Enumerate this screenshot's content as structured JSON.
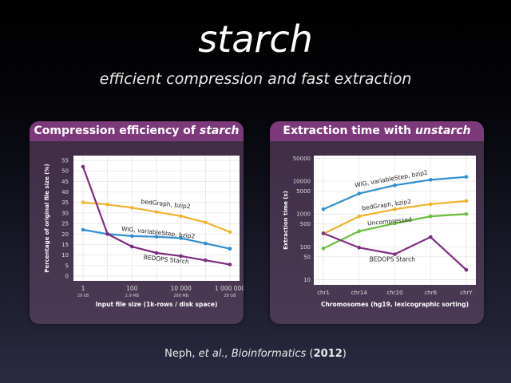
{
  "header": {
    "title": "starch",
    "subtitle": "efficient compression and fast extraction"
  },
  "panels": {
    "left_title_prefix": "Compression efficiency of ",
    "left_title_em": "starch",
    "right_title_prefix": "Extraction time with ",
    "right_title_em": "unstarch"
  },
  "citation": {
    "author": "Neph, ",
    "etal": "et al., ",
    "journal": "Bioinformatics",
    "open": " (",
    "year": "2012",
    "close": ")"
  },
  "colors": {
    "bedgraph": "#f0b32b",
    "wig": "#2f8fd0",
    "bedops": "#7b2d7d",
    "uncompressed": "#6bbd3c",
    "panel_header": "#7c3a7a"
  },
  "chart_data": [
    {
      "type": "line",
      "title": "Compression efficiency of starch",
      "xlabel": "Input file size (1k-rows / disk space)",
      "ylabel": "Percentage of original file size (%)",
      "x_scale": "log",
      "xlim": [
        1,
        1000000
      ],
      "ylim": [
        0,
        55
      ],
      "yticks": [
        0,
        5,
        10,
        15,
        20,
        25,
        30,
        35,
        40,
        45,
        50,
        55
      ],
      "xticks": [
        {
          "v": 1,
          "label": "1",
          "sub": "29 kB"
        },
        {
          "v": 100,
          "label": "100",
          "sub": "2.9 MB"
        },
        {
          "v": 10000,
          "label": "10 000",
          "sub": "288 MB"
        },
        {
          "v": 1000000,
          "label": "1 000 000",
          "sub": "28 GB"
        }
      ],
      "x": [
        1,
        10,
        100,
        1000,
        10000,
        100000,
        1000000
      ],
      "grid": true,
      "series": [
        {
          "name": "bedGraph, bzip2",
          "color": "#f0b32b",
          "values": [
            35,
            34,
            32.5,
            30.5,
            28.5,
            25.5,
            21
          ]
        },
        {
          "name": "WIG, variableStep, bzip2",
          "color": "#2f8fd0",
          "values": [
            22,
            20,
            19,
            18.7,
            18,
            15.5,
            13
          ]
        },
        {
          "name": "BEDOPS Starch",
          "color": "#7b2d7d",
          "values": [
            52,
            20,
            14,
            11,
            9.5,
            7.5,
            5.5
          ]
        }
      ]
    },
    {
      "type": "line",
      "title": "Extraction time with unstarch",
      "xlabel": "Chromosomes (hg19, lexicographic sorting)",
      "ylabel": "Extraction time (s)",
      "y_scale": "log",
      "ylim": [
        7,
        60000
      ],
      "yticks": [
        10,
        50,
        100,
        500,
        1000,
        5000,
        10000,
        50000
      ],
      "categories": [
        "chr1",
        "chr14",
        "chr20",
        "chr6",
        "chrY"
      ],
      "grid": true,
      "series": [
        {
          "name": "WIG, variableStep, bzip2",
          "color": "#2f8fd0",
          "values": [
            1400,
            4200,
            7500,
            11000,
            13500
          ]
        },
        {
          "name": "bedGraph, bzip2",
          "color": "#f0b32b",
          "values": [
            250,
            850,
            1400,
            2000,
            2500
          ]
        },
        {
          "name": "Uncompressed",
          "color": "#6bbd3c",
          "values": [
            90,
            300,
            520,
            850,
            1000
          ]
        },
        {
          "name": "BEDOPS Starch",
          "color": "#7b2d7d",
          "values": [
            260,
            95,
            60,
            200,
            20
          ]
        }
      ]
    }
  ]
}
